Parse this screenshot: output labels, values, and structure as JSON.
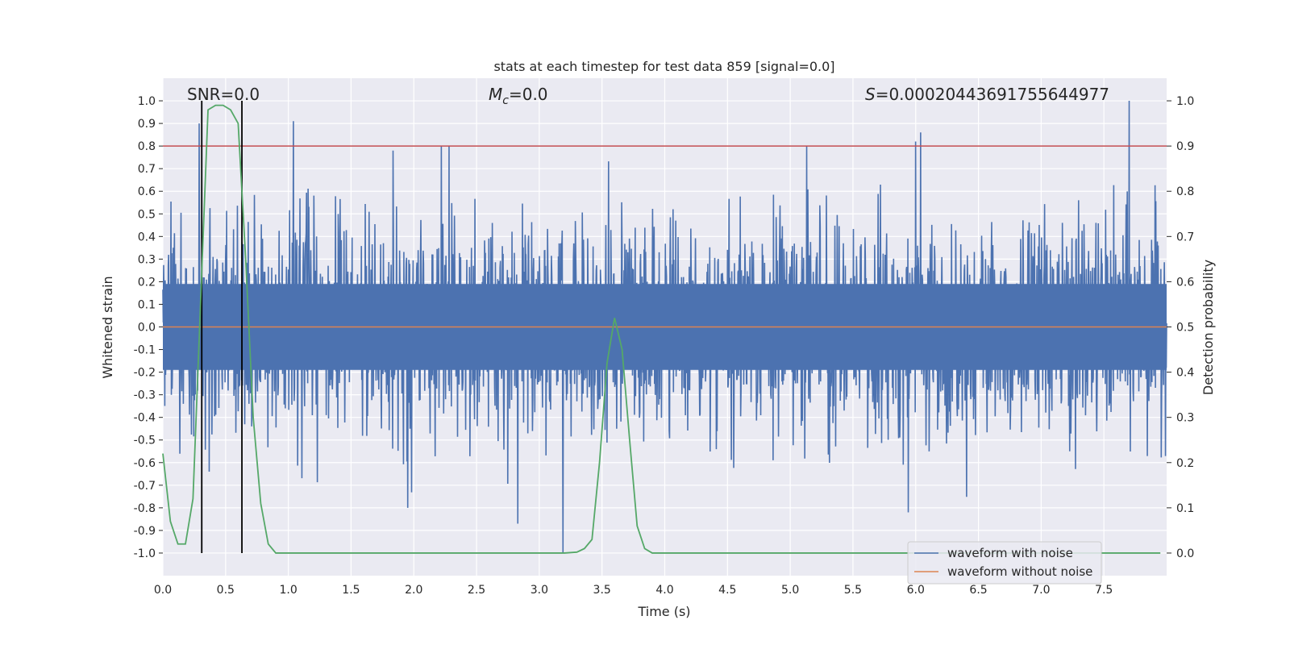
{
  "chart_data": {
    "type": "line",
    "title": "stats at each timestep for test data 859 [signal=0.0]",
    "xlabel": "Time (s)",
    "ylabel": "Whitened strain",
    "y2label": "Detection probability",
    "xlim": [
      0.0,
      8.0
    ],
    "ylim": [
      -1.1,
      1.1
    ],
    "y2lim": [
      -0.05,
      1.05
    ],
    "xticks": [
      "0.0",
      "0.5",
      "1.0",
      "1.5",
      "2.0",
      "2.5",
      "3.0",
      "3.5",
      "4.0",
      "4.5",
      "5.0",
      "5.5",
      "6.0",
      "6.5",
      "7.0",
      "7.5"
    ],
    "yticks": [
      "1.0",
      "0.9",
      "0.8",
      "0.7",
      "0.6",
      "0.5",
      "0.4",
      "0.3",
      "0.2",
      "0.1",
      "0.0",
      "-0.1",
      "-0.2",
      "-0.3",
      "-0.4",
      "-0.5",
      "-0.6",
      "-0.7",
      "-0.8",
      "-0.9",
      "-1.0"
    ],
    "y2ticks": [
      "1.0",
      "0.9",
      "0.8",
      "0.7",
      "0.6",
      "0.5",
      "0.4",
      "0.3",
      "0.2",
      "0.1",
      "0.0"
    ],
    "annotations": {
      "snr": "SNR=0.0",
      "mc_symbol": "M",
      "mc_sub": "c",
      "mc_value": "=0.0",
      "s_symbol": "S",
      "s_value": "=0.00020443691755644977"
    },
    "threshold": 0.8,
    "vlines": [
      0.31,
      0.63
    ],
    "noise_amplitude": 0.55,
    "noise_spikes": [
      {
        "x": 0.29,
        "y": 0.9
      },
      {
        "x": 1.04,
        "y": 0.91
      },
      {
        "x": 2.22,
        "y": 0.8
      },
      {
        "x": 2.28,
        "y": 0.8
      },
      {
        "x": 3.19,
        "y": -1.0
      },
      {
        "x": 5.13,
        "y": 0.8
      },
      {
        "x": 6.0,
        "y": 0.82
      },
      {
        "x": 6.04,
        "y": 0.86
      },
      {
        "x": 7.7,
        "y": 1.0
      },
      {
        "x": 5.94,
        "y": -0.82
      },
      {
        "x": 2.83,
        "y": -0.87
      },
      {
        "x": 1.95,
        "y": -0.8
      }
    ],
    "series": [
      {
        "name": "waveform with noise",
        "color": "#4c72b0"
      },
      {
        "name": "waveform without noise",
        "color": "#dd8452",
        "x": [
          0.0,
          8.0
        ],
        "y": [
          0.0,
          0.0
        ]
      },
      {
        "name": "detection probability",
        "color": "#55a868",
        "x": [
          0.0,
          0.06,
          0.12,
          0.18,
          0.24,
          0.3,
          0.36,
          0.42,
          0.48,
          0.54,
          0.6,
          0.66,
          0.72,
          0.78,
          0.84,
          0.9,
          1.0,
          2.0,
          3.0,
          3.2,
          3.3,
          3.36,
          3.42,
          3.48,
          3.54,
          3.6,
          3.66,
          3.72,
          3.78,
          3.84,
          3.9,
          4.0,
          5.0,
          6.0,
          7.0,
          7.95
        ],
        "y": [
          0.22,
          0.07,
          0.02,
          0.02,
          0.12,
          0.55,
          0.98,
          0.99,
          0.99,
          0.98,
          0.95,
          0.65,
          0.3,
          0.11,
          0.02,
          0.0,
          0.0,
          0.0,
          0.0,
          0.0,
          0.002,
          0.01,
          0.03,
          0.2,
          0.42,
          0.52,
          0.45,
          0.25,
          0.06,
          0.01,
          0.0,
          0.0,
          0.0,
          0.0,
          0.0,
          0.0
        ]
      }
    ],
    "legend_position": "lower-right",
    "colors": {
      "plot_bg": "#eaeaf2",
      "grid": "#ffffff",
      "threshold": "#c44e52",
      "vline": "#000000"
    }
  }
}
